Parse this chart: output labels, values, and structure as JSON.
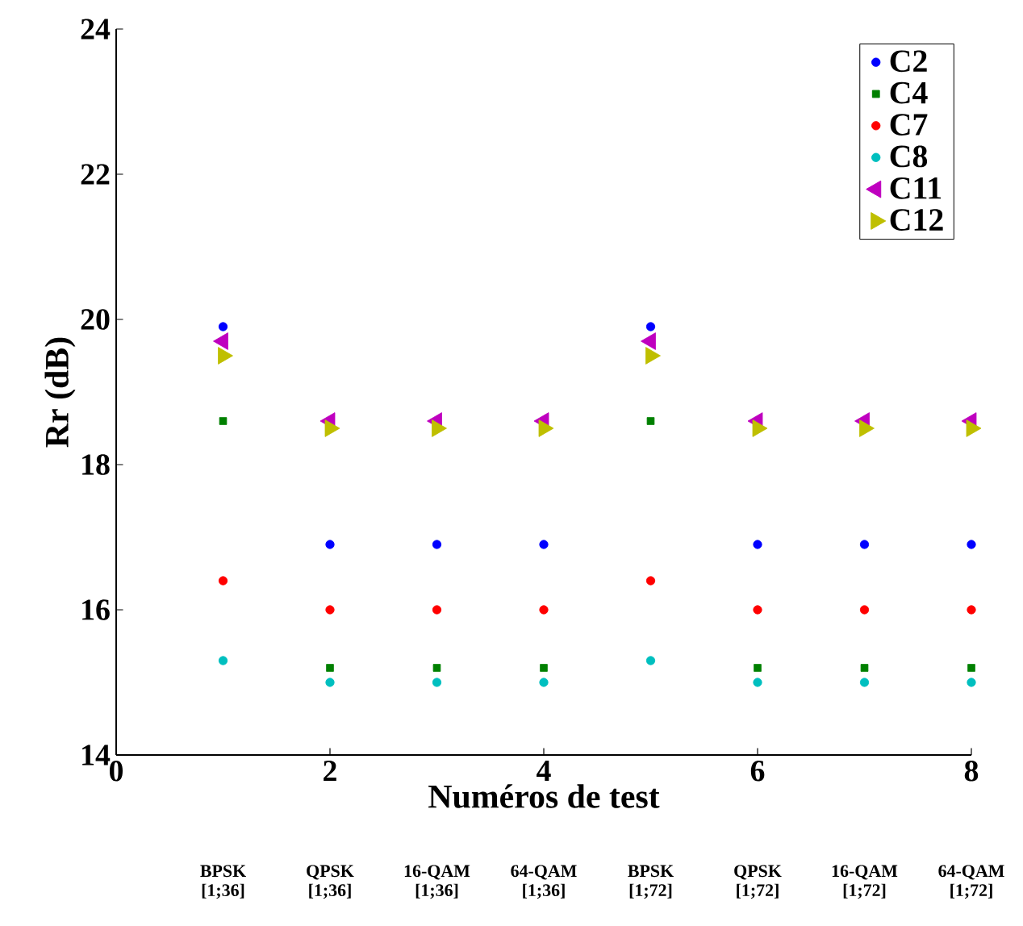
{
  "chart_data": {
    "type": "scatter",
    "xlabel": "Numéros de test",
    "ylabel": "Rr (dB)",
    "x": [
      1,
      2,
      3,
      4,
      5,
      6,
      7,
      8
    ],
    "xlim": [
      0,
      8
    ],
    "xticks": [
      0,
      2,
      4,
      6,
      8
    ],
    "ylim": [
      14,
      24
    ],
    "yticks": [
      14,
      16,
      18,
      20,
      22,
      24
    ],
    "legend": "top right",
    "grid": false,
    "series": [
      {
        "name": "C2",
        "color": "#0000ff",
        "marker": "circle",
        "values": [
          19.9,
          16.9,
          16.9,
          16.9,
          19.9,
          16.9,
          16.9,
          16.9
        ]
      },
      {
        "name": "C4",
        "color": "#008000",
        "marker": "square",
        "values": [
          18.6,
          15.2,
          15.2,
          15.2,
          18.6,
          15.2,
          15.2,
          15.2
        ]
      },
      {
        "name": "C7",
        "color": "#ff0000",
        "marker": "circle",
        "values": [
          16.4,
          16,
          16,
          16,
          16.4,
          16,
          16,
          16
        ]
      },
      {
        "name": "C8",
        "color": "#00bfbf",
        "marker": "circle",
        "values": [
          15.3,
          15,
          15,
          15,
          15.3,
          15,
          15,
          15
        ]
      },
      {
        "name": "C11",
        "color": "#bf00bf",
        "marker": "triangle-left",
        "values": [
          19.7,
          18.6,
          18.6,
          18.6,
          19.7,
          18.6,
          18.6,
          18.6
        ]
      },
      {
        "name": "C12",
        "color": "#bfbf00",
        "marker": "triangle-right",
        "values": [
          19.5,
          18.5,
          18.5,
          18.5,
          19.5,
          18.5,
          18.5,
          18.5
        ]
      }
    ],
    "annotations": [
      "BPSK [1;36]",
      "QPSK [1;36]",
      "16-QAM [1;36]",
      "64-QAM [1;36]",
      "BPSK [1;72]",
      "QPSK [1;72]",
      "16-QAM [1;72]",
      "64-QAM [1;72]"
    ]
  }
}
